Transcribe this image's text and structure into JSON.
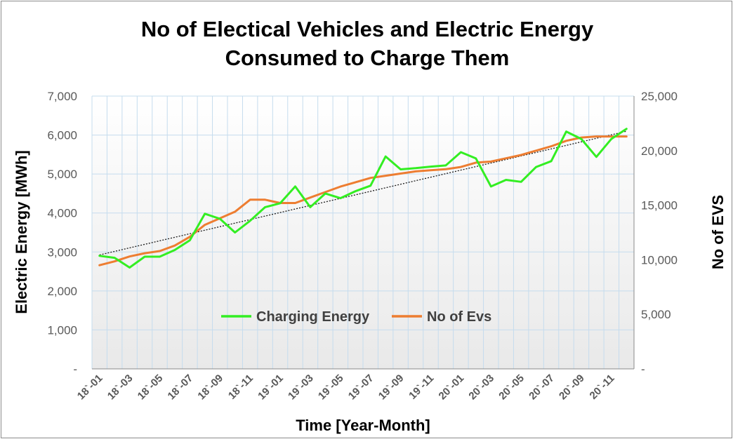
{
  "chart_data": {
    "type": "line",
    "title_lines": [
      "No of  Electical Vehicles and Electric Energy",
      "Consumed to Charge Them"
    ],
    "xlabel": "Time [Year-Month]",
    "ylabel": "Electric Energy [MWh]",
    "y2label": "No of EVS",
    "ylim": [
      0,
      7000
    ],
    "y2lim": [
      0,
      25000
    ],
    "y_ticks": [
      "-",
      "1,000",
      "2,000",
      "3,000",
      "4,000",
      "5,000",
      "6,000",
      "7,000"
    ],
    "y2_ticks": [
      "-",
      "5,000",
      "10,000",
      "15,000",
      "20,000",
      "25,000"
    ],
    "x": [
      "18`-01",
      "18`-02",
      "18`-03",
      "18`-04",
      "18`-05",
      "18`-06",
      "18`-07",
      "18`-08",
      "18`-09",
      "18`-10",
      "18`-11",
      "18`-12",
      "19`-01",
      "19`-02",
      "19`-03",
      "19`-04",
      "19`-05",
      "19`-06",
      "19`-07",
      "19`-08",
      "19`-09",
      "19`-10",
      "19`-11",
      "19`-12",
      "20`-01",
      "20`-02",
      "20`-03",
      "20`-04",
      "20`-05",
      "20`-06",
      "20`-07",
      "20`-08",
      "20`-09",
      "20`-10",
      "20`-11",
      "20`-12"
    ],
    "x_tick_labels": [
      "18`-01",
      "18`-03",
      "18`-05",
      "18`-07",
      "18`-09",
      "18`-11",
      "19`-01",
      "19`-03",
      "19`-05",
      "19`-07",
      "19`-09",
      "19`-11",
      "20`-01",
      "20`-03",
      "20`-05",
      "20`-07",
      "20`-09",
      "20`-11"
    ],
    "grid": true,
    "legend_position": "center",
    "series": [
      {
        "name": "Charging Energy",
        "axis": "left",
        "color": "#33ee22",
        "values": [
          2900,
          2850,
          2600,
          2880,
          2880,
          3050,
          3300,
          3980,
          3850,
          3500,
          3800,
          4150,
          4250,
          4680,
          4150,
          4500,
          4380,
          4560,
          4700,
          5450,
          5120,
          5150,
          5190,
          5220,
          5560,
          5400,
          4680,
          4850,
          4800,
          5180,
          5330,
          6090,
          5900,
          5440,
          5900,
          6160
        ]
      },
      {
        "name": "No of Evs",
        "axis": "right",
        "color": "#ed7d31",
        "values": [
          9500,
          9850,
          10300,
          10600,
          10800,
          11300,
          12100,
          13200,
          13800,
          14400,
          15500,
          15500,
          15200,
          15200,
          15700,
          16200,
          16700,
          17100,
          17500,
          17700,
          17900,
          18100,
          18200,
          18300,
          18500,
          18900,
          19000,
          19300,
          19600,
          20000,
          20400,
          20900,
          21200,
          21300,
          21300,
          21300
        ]
      }
    ],
    "trendline": {
      "series": "Charging Energy",
      "type": "linear",
      "color": "#1a1a1a",
      "style": "dotted"
    }
  }
}
